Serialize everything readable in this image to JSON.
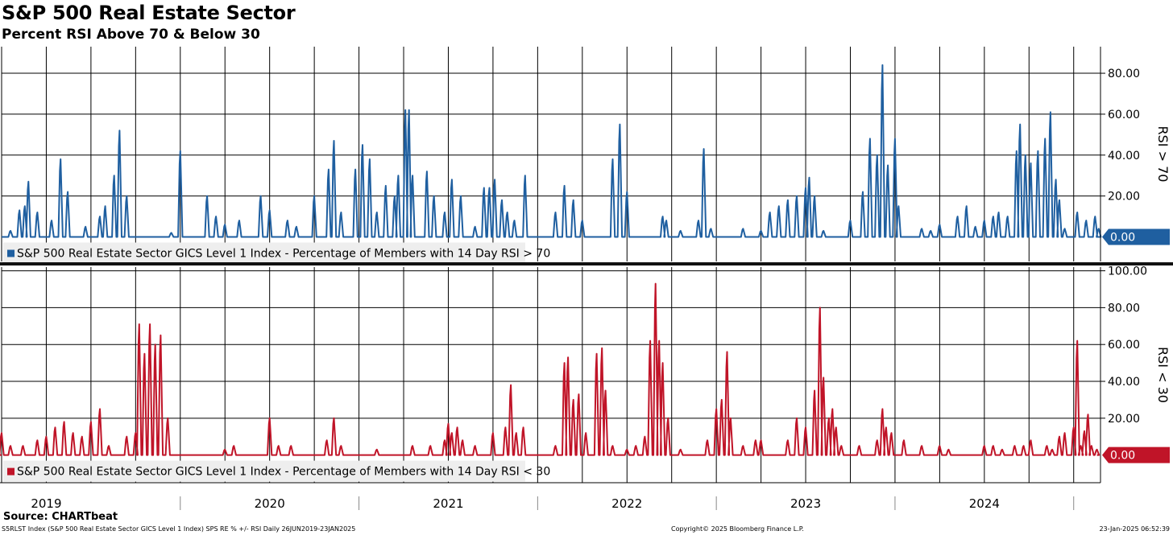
{
  "title": "S&P 500 Real Estate Sector",
  "subtitle": "Percent RSI Above 70 & Below 30",
  "source": "Source: CHARTbeat",
  "footer": {
    "left": "S5RLST Index (S&P 500 Real Estate Sector GICS Level 1 Index) SPS RE % +/- RSI  Daily 26JUN2019-23JAN2025",
    "middle": "Copyright© 2025 Bloomberg Finance L.P.",
    "right": "23-Jan-2025 06:52:39"
  },
  "colors": {
    "upper": "#1f5fa0",
    "lower": "#c01428",
    "grid": "#000000"
  },
  "chart_data": [
    {
      "type": "line",
      "panel": "upper",
      "ylabel": "RSI > 70",
      "ylim": [
        -12,
        93
      ],
      "yticks": [
        "20.00",
        "40.00",
        "60.00",
        "80.00"
      ],
      "ytick_values": [
        20,
        40,
        60,
        80
      ],
      "last_value_label": "0.00",
      "legend": "S&P 500 Real Estate Sector GICS Level 1 Index - Percentage of Members with 14 Day RSI > 70",
      "color": "#1f5fa0",
      "x_range": [
        2019.0,
        2025.15
      ],
      "peaks": [
        [
          2019.05,
          3
        ],
        [
          2019.1,
          13
        ],
        [
          2019.13,
          15
        ],
        [
          2019.15,
          27
        ],
        [
          2019.2,
          12
        ],
        [
          2019.28,
          8
        ],
        [
          2019.33,
          38
        ],
        [
          2019.37,
          22
        ],
        [
          2019.47,
          5
        ],
        [
          2019.55,
          10
        ],
        [
          2019.58,
          15
        ],
        [
          2019.63,
          30
        ],
        [
          2019.66,
          52
        ],
        [
          2019.7,
          20
        ],
        [
          2019.95,
          2
        ],
        [
          2020.0,
          42
        ],
        [
          2020.15,
          20
        ],
        [
          2020.2,
          10
        ],
        [
          2020.25,
          6
        ],
        [
          2020.33,
          8
        ],
        [
          2020.45,
          20
        ],
        [
          2020.5,
          13
        ],
        [
          2020.6,
          8
        ],
        [
          2020.65,
          5
        ],
        [
          2020.75,
          20
        ],
        [
          2020.83,
          33
        ],
        [
          2020.86,
          47
        ],
        [
          2020.9,
          12
        ],
        [
          2020.98,
          33
        ],
        [
          2021.02,
          45
        ],
        [
          2021.06,
          38
        ],
        [
          2021.1,
          12
        ],
        [
          2021.15,
          25
        ],
        [
          2021.2,
          20
        ],
        [
          2021.22,
          30
        ],
        [
          2021.26,
          62
        ],
        [
          2021.28,
          62
        ],
        [
          2021.3,
          30
        ],
        [
          2021.38,
          32
        ],
        [
          2021.42,
          20
        ],
        [
          2021.48,
          12
        ],
        [
          2021.52,
          28
        ],
        [
          2021.57,
          20
        ],
        [
          2021.65,
          5
        ],
        [
          2021.7,
          24
        ],
        [
          2021.73,
          24
        ],
        [
          2021.76,
          28
        ],
        [
          2021.8,
          18
        ],
        [
          2021.83,
          12
        ],
        [
          2021.87,
          8
        ],
        [
          2021.93,
          30
        ],
        [
          2022.1,
          12
        ],
        [
          2022.15,
          25
        ],
        [
          2022.2,
          18
        ],
        [
          2022.25,
          8
        ],
        [
          2022.42,
          38
        ],
        [
          2022.46,
          55
        ],
        [
          2022.5,
          22
        ],
        [
          2022.7,
          10
        ],
        [
          2022.72,
          8
        ],
        [
          2022.8,
          3
        ],
        [
          2022.9,
          8
        ],
        [
          2022.93,
          43
        ],
        [
          2022.97,
          4
        ],
        [
          2023.15,
          4
        ],
        [
          2023.25,
          3
        ],
        [
          2023.3,
          12
        ],
        [
          2023.35,
          15
        ],
        [
          2023.4,
          18
        ],
        [
          2023.45,
          20
        ],
        [
          2023.5,
          24
        ],
        [
          2023.52,
          29
        ],
        [
          2023.55,
          20
        ],
        [
          2023.6,
          3
        ],
        [
          2023.75,
          8
        ],
        [
          2023.82,
          22
        ],
        [
          2023.86,
          48
        ],
        [
          2023.9,
          40
        ],
        [
          2023.93,
          84
        ],
        [
          2023.96,
          35
        ],
        [
          2024.0,
          48
        ],
        [
          2024.02,
          15
        ],
        [
          2024.15,
          4
        ],
        [
          2024.2,
          3
        ],
        [
          2024.25,
          6
        ],
        [
          2024.35,
          10
        ],
        [
          2024.4,
          15
        ],
        [
          2024.45,
          5
        ],
        [
          2024.5,
          8
        ],
        [
          2024.55,
          10
        ],
        [
          2024.58,
          12
        ],
        [
          2024.63,
          10
        ],
        [
          2024.68,
          42
        ],
        [
          2024.7,
          55
        ],
        [
          2024.73,
          40
        ],
        [
          2024.76,
          36
        ],
        [
          2024.8,
          42
        ],
        [
          2024.84,
          48
        ],
        [
          2024.87,
          61
        ],
        [
          2024.9,
          28
        ],
        [
          2024.92,
          18
        ],
        [
          2024.95,
          4
        ],
        [
          2025.02,
          12
        ],
        [
          2025.07,
          8
        ],
        [
          2025.12,
          10
        ],
        [
          2025.14,
          4
        ]
      ]
    },
    {
      "type": "line",
      "panel": "lower",
      "ylabel": "RSI < 30",
      "ylim": [
        -15,
        102
      ],
      "yticks": [
        "20.00",
        "40.00",
        "60.00",
        "80.00",
        "100.00"
      ],
      "ytick_values": [
        20,
        40,
        60,
        80,
        100
      ],
      "last_value_label": "0.00",
      "legend": "S&P 500 Real Estate Sector GICS Level 1 Index - Percentage of Members with 14 Day RSI < 30",
      "color": "#c01428",
      "x_range": [
        2019.0,
        2025.15
      ],
      "peaks": [
        [
          2019.0,
          12
        ],
        [
          2019.05,
          5
        ],
        [
          2019.12,
          5
        ],
        [
          2019.2,
          8
        ],
        [
          2019.25,
          10
        ],
        [
          2019.3,
          15
        ],
        [
          2019.35,
          18
        ],
        [
          2019.4,
          12
        ],
        [
          2019.45,
          10
        ],
        [
          2019.5,
          18
        ],
        [
          2019.55,
          25
        ],
        [
          2019.6,
          5
        ],
        [
          2019.7,
          10
        ],
        [
          2019.75,
          12
        ],
        [
          2019.77,
          71
        ],
        [
          2019.8,
          55
        ],
        [
          2019.83,
          71
        ],
        [
          2019.86,
          60
        ],
        [
          2019.89,
          65
        ],
        [
          2019.93,
          20
        ],
        [
          2020.25,
          3
        ],
        [
          2020.3,
          5
        ],
        [
          2020.5,
          20
        ],
        [
          2020.55,
          5
        ],
        [
          2020.62,
          5
        ],
        [
          2020.82,
          8
        ],
        [
          2020.86,
          20
        ],
        [
          2020.9,
          5
        ],
        [
          2021.1,
          3
        ],
        [
          2021.3,
          5
        ],
        [
          2021.4,
          5
        ],
        [
          2021.48,
          8
        ],
        [
          2021.5,
          17
        ],
        [
          2021.52,
          12
        ],
        [
          2021.55,
          15
        ],
        [
          2021.58,
          8
        ],
        [
          2021.65,
          5
        ],
        [
          2021.75,
          12
        ],
        [
          2021.82,
          15
        ],
        [
          2021.85,
          38
        ],
        [
          2021.88,
          12
        ],
        [
          2021.92,
          15
        ],
        [
          2022.1,
          5
        ],
        [
          2022.15,
          50
        ],
        [
          2022.17,
          53
        ],
        [
          2022.2,
          30
        ],
        [
          2022.23,
          33
        ],
        [
          2022.27,
          12
        ],
        [
          2022.33,
          55
        ],
        [
          2022.36,
          58
        ],
        [
          2022.38,
          35
        ],
        [
          2022.42,
          5
        ],
        [
          2022.5,
          3
        ],
        [
          2022.55,
          5
        ],
        [
          2022.6,
          10
        ],
        [
          2022.63,
          62
        ],
        [
          2022.66,
          93
        ],
        [
          2022.68,
          62
        ],
        [
          2022.7,
          50
        ],
        [
          2022.73,
          20
        ],
        [
          2022.8,
          3
        ],
        [
          2022.95,
          8
        ],
        [
          2023.0,
          25
        ],
        [
          2023.03,
          30
        ],
        [
          2023.06,
          56
        ],
        [
          2023.08,
          20
        ],
        [
          2023.15,
          5
        ],
        [
          2023.22,
          8
        ],
        [
          2023.25,
          8
        ],
        [
          2023.4,
          8
        ],
        [
          2023.45,
          20
        ],
        [
          2023.5,
          15
        ],
        [
          2023.55,
          35
        ],
        [
          2023.58,
          80
        ],
        [
          2023.6,
          42
        ],
        [
          2023.63,
          20
        ],
        [
          2023.65,
          25
        ],
        [
          2023.67,
          15
        ],
        [
          2023.7,
          5
        ],
        [
          2023.8,
          5
        ],
        [
          2023.9,
          8
        ],
        [
          2023.93,
          25
        ],
        [
          2023.95,
          15
        ],
        [
          2023.98,
          12
        ],
        [
          2024.05,
          8
        ],
        [
          2024.15,
          5
        ],
        [
          2024.25,
          5
        ],
        [
          2024.3,
          3
        ],
        [
          2024.5,
          5
        ],
        [
          2024.55,
          5
        ],
        [
          2024.6,
          3
        ],
        [
          2024.67,
          5
        ],
        [
          2024.72,
          5
        ],
        [
          2024.76,
          8
        ],
        [
          2024.85,
          5
        ],
        [
          2024.88,
          3
        ],
        [
          2024.92,
          10
        ],
        [
          2024.95,
          12
        ],
        [
          2025.0,
          15
        ],
        [
          2025.02,
          62
        ],
        [
          2025.04,
          5
        ],
        [
          2025.06,
          13
        ],
        [
          2025.08,
          22
        ],
        [
          2025.1,
          5
        ],
        [
          2025.13,
          3
        ]
      ]
    }
  ],
  "x_axis": {
    "year_labels": [
      "2019",
      "2020",
      "2021",
      "2022",
      "2023",
      "2024"
    ],
    "year_label_values": [
      2019.25,
      2020.5,
      2021.5,
      2022.5,
      2023.5,
      2024.5
    ],
    "year_boundaries": [
      2020.0,
      2021.0,
      2022.0,
      2023.0,
      2024.0,
      2025.0
    ],
    "gridlines": [
      2019.0,
      2019.25,
      2019.5,
      2019.75,
      2020.0,
      2020.25,
      2020.5,
      2020.75,
      2021.0,
      2021.25,
      2021.5,
      2021.75,
      2022.0,
      2022.25,
      2022.5,
      2022.75,
      2023.0,
      2023.25,
      2023.5,
      2023.75,
      2024.0,
      2024.25,
      2024.5,
      2024.75,
      2025.0
    ]
  }
}
